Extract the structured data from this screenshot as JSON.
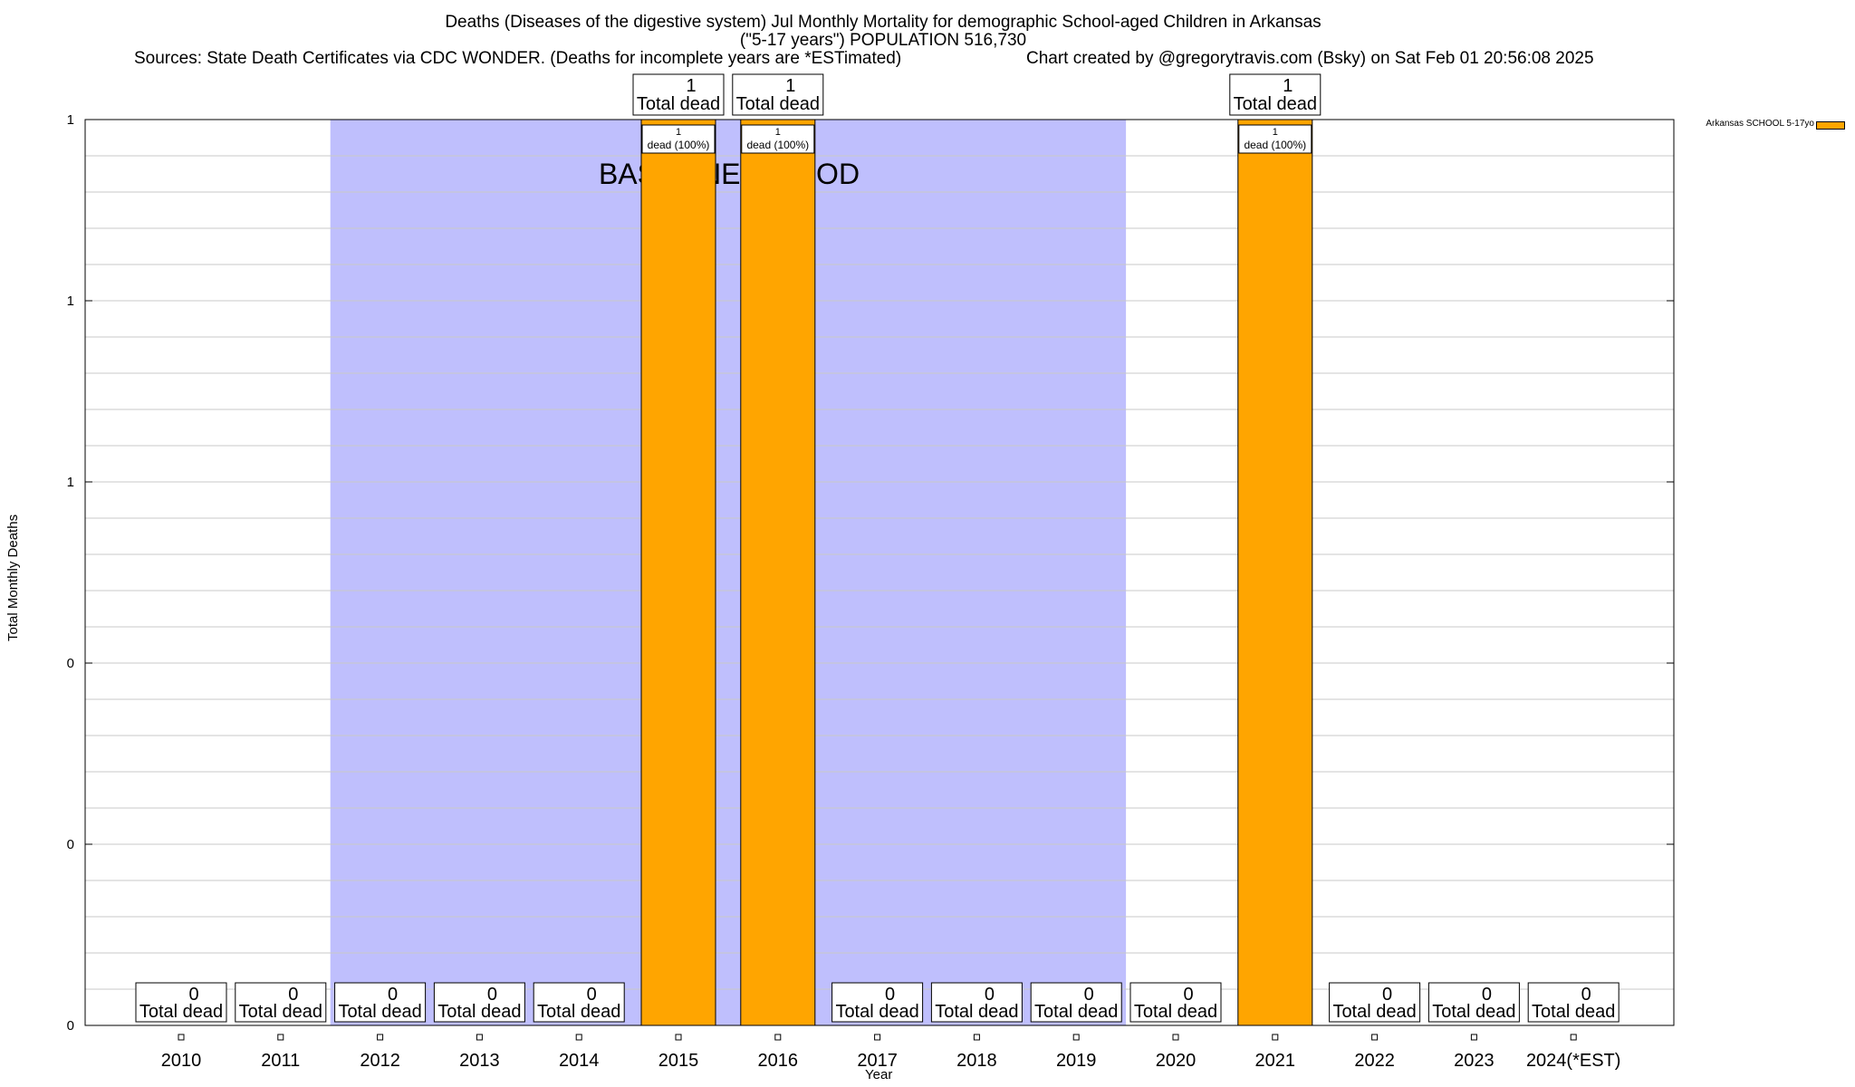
{
  "chart_data": {
    "type": "bar",
    "title_lines": [
      "Deaths (Diseases of the digestive system) Jul Monthly Mortality for demographic School-aged Children in Arkansas",
      "(\"5-17 years\") POPULATION 516,730"
    ],
    "sources": "Sources: State Death Certificates via CDC WONDER. (Deaths for incomplete years are *ESTimated)",
    "credit": "Chart created by @gregorytravis.com (Bsky) on Sat Feb 01 20:56:08 2025",
    "xlabel": "Year",
    "ylabel": "Total Monthly Deaths",
    "categories": [
      "2010",
      "2011",
      "2012",
      "2013",
      "2014",
      "2015",
      "2016",
      "2017",
      "2018",
      "2019",
      "2020",
      "2021",
      "2022",
      "2023",
      "2024(*EST)"
    ],
    "series": [
      {
        "name": "Arkansas SCHOOL 5-17yo",
        "color": "#ffa500",
        "values": [
          0,
          0,
          0,
          0,
          0,
          1,
          1,
          0,
          0,
          0,
          0,
          1,
          0,
          0,
          0
        ]
      }
    ],
    "total_label_text": "Total dead",
    "bar_label_text": "dead (100%)",
    "ylim": [
      0,
      1
    ],
    "ytick_labels": [
      "0",
      "0",
      "0",
      "1",
      "1",
      "1"
    ],
    "baseline_period": {
      "label": "BASELINE PERIOD",
      "start": "2012",
      "end": "2019",
      "color": "#bfbffd"
    },
    "grid": true
  }
}
